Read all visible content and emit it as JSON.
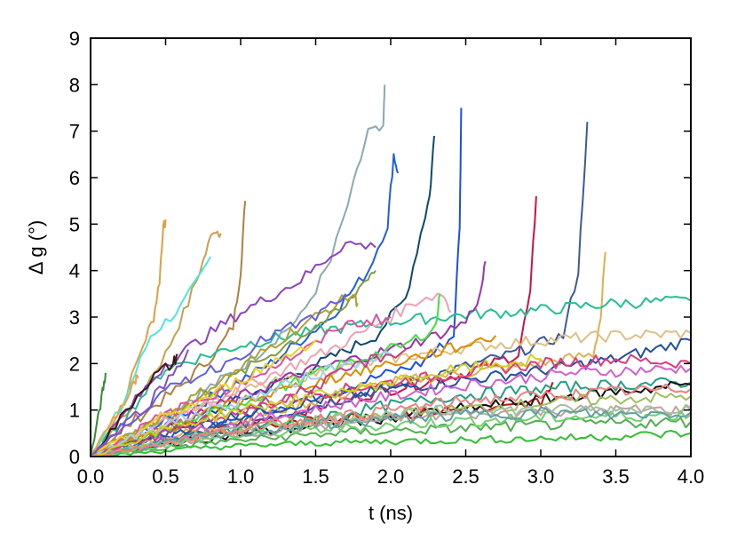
{
  "chart_data": {
    "type": "line",
    "xlabel": "t (ns)",
    "ylabel": "Δ g (°)",
    "xlim": [
      0.0,
      4.0
    ],
    "ylim": [
      0,
      9
    ],
    "xticks": [
      "0.0",
      "0.5",
      "1.0",
      "1.5",
      "2.0",
      "2.5",
      "3.0",
      "3.5",
      "4.0"
    ],
    "yticks": [
      "0",
      "1",
      "2",
      "3",
      "4",
      "5",
      "6",
      "7",
      "8",
      "9"
    ],
    "grid": false,
    "legend": "none",
    "series": [
      {
        "color": "#e0a040",
        "x": [
          0.0,
          0.2,
          0.35,
          0.42,
          0.46,
          0.48,
          0.5
        ],
        "y": [
          0.0,
          1.0,
          2.4,
          3.0,
          3.8,
          4.8,
          5.1
        ]
      },
      {
        "color": "#c8a050",
        "x": [
          0.0,
          0.3,
          0.5,
          0.65,
          0.75,
          0.82,
          0.87
        ],
        "y": [
          0.0,
          1.2,
          2.2,
          3.3,
          4.2,
          4.9,
          4.8
        ]
      },
      {
        "color": "#4fe6e0",
        "x": [
          0.0,
          0.2,
          0.4,
          0.6,
          0.72,
          0.8
        ],
        "y": [
          0.0,
          1.0,
          2.6,
          3.2,
          3.8,
          4.3
        ]
      },
      {
        "color": "#b08040",
        "x": [
          0.0,
          0.3,
          0.6,
          0.85,
          0.95,
          1.0,
          1.03
        ],
        "y": [
          0.0,
          0.8,
          1.5,
          2.3,
          2.8,
          4.0,
          5.5
        ]
      },
      {
        "color": "#88aab0",
        "x": [
          0.0,
          0.5,
          1.0,
          1.4,
          1.6,
          1.75,
          1.85,
          1.95,
          1.96
        ],
        "y": [
          0.0,
          0.9,
          1.9,
          3.0,
          4.2,
          5.8,
          7.0,
          7.0,
          8.0
        ]
      },
      {
        "color": "#1f5fe0",
        "x": [
          0.0,
          0.6,
          1.2,
          1.6,
          1.85,
          1.98,
          2.02,
          2.05
        ],
        "y": [
          0.0,
          0.9,
          2.0,
          3.0,
          4.0,
          5.0,
          6.5,
          6.1
        ]
      },
      {
        "color": "#0a4a70",
        "x": [
          0.0,
          0.7,
          1.4,
          1.9,
          2.1,
          2.2,
          2.26,
          2.29
        ],
        "y": [
          0.0,
          0.8,
          1.8,
          2.6,
          3.4,
          4.8,
          5.6,
          6.9
        ]
      },
      {
        "color": "#1a50e0",
        "x": [
          0.0,
          0.8,
          1.6,
          2.2,
          2.42,
          2.46,
          2.47
        ],
        "y": [
          0.0,
          0.7,
          1.4,
          2.0,
          2.6,
          5.0,
          7.5
        ]
      },
      {
        "color": "#d0104a",
        "x": [
          0.0,
          0.9,
          1.8,
          2.5,
          2.85,
          2.93,
          2.97
        ],
        "y": [
          0.0,
          0.6,
          1.3,
          1.8,
          2.2,
          3.5,
          5.6
        ]
      },
      {
        "color": "#3a5aa0",
        "x": [
          0.0,
          1.0,
          2.0,
          2.8,
          3.15,
          3.25,
          3.31
        ],
        "y": [
          0.0,
          0.7,
          1.5,
          2.2,
          2.6,
          4.0,
          7.2
        ]
      },
      {
        "color": "#e0b050",
        "x": [
          0.0,
          1.0,
          2.0,
          3.0,
          3.35,
          3.4,
          3.43
        ],
        "y": [
          0.0,
          0.8,
          1.6,
          2.0,
          2.2,
          3.0,
          4.4
        ]
      },
      {
        "color": "#20c090",
        "x": [
          0.0,
          0.5,
          1.0,
          1.5,
          2.0,
          2.5,
          3.0,
          3.5,
          4.0
        ],
        "y": [
          0.0,
          1.9,
          2.4,
          2.7,
          2.9,
          3.05,
          3.15,
          3.3,
          3.35
        ]
      },
      {
        "color": "#e0c080",
        "x": [
          0.0,
          0.5,
          1.0,
          1.5,
          2.0,
          2.5,
          3.0,
          3.5,
          4.0
        ],
        "y": [
          0.0,
          0.9,
          1.4,
          1.8,
          2.1,
          2.35,
          2.5,
          2.6,
          2.65
        ]
      },
      {
        "color": "#2050a0",
        "x": [
          0.0,
          0.5,
          1.0,
          1.5,
          2.0,
          2.5,
          3.0,
          3.5,
          4.0
        ],
        "y": [
          0.0,
          0.5,
          0.9,
          1.2,
          1.45,
          1.65,
          1.85,
          2.1,
          2.5
        ]
      },
      {
        "color": "#e03a7a",
        "x": [
          0.0,
          0.5,
          1.0,
          1.5,
          2.0,
          2.5,
          3.0,
          3.5,
          4.0
        ],
        "y": [
          0.0,
          0.6,
          1.0,
          1.35,
          1.6,
          1.8,
          2.0,
          2.1,
          2.0
        ]
      },
      {
        "color": "#9040c0",
        "x": [
          0.0,
          0.5,
          1.0,
          1.4,
          1.7,
          1.9
        ],
        "y": [
          0.0,
          2.0,
          3.1,
          3.8,
          4.6,
          4.5
        ]
      },
      {
        "color": "#80a040",
        "x": [
          0.0,
          0.6,
          1.2,
          1.7,
          1.85,
          1.9
        ],
        "y": [
          0.0,
          1.0,
          2.2,
          3.2,
          3.9,
          4.0
        ]
      },
      {
        "color": "#f0a0b0",
        "x": [
          0.0,
          0.8,
          1.6,
          2.0,
          2.2,
          2.35,
          2.4
        ],
        "y": [
          0.0,
          1.2,
          2.3,
          3.0,
          3.4,
          3.5,
          3.1
        ]
      },
      {
        "color": "#a030b0",
        "x": [
          0.0,
          0.7,
          1.4,
          2.0,
          2.3,
          2.5,
          2.6,
          2.63
        ],
        "y": [
          0.0,
          0.9,
          1.8,
          2.3,
          2.6,
          2.9,
          3.5,
          4.2
        ]
      },
      {
        "color": "#b0a030",
        "x": [
          0.0,
          0.6,
          1.0,
          1.3,
          1.6,
          1.75,
          1.78
        ],
        "y": [
          0.0,
          1.1,
          1.9,
          2.6,
          3.2,
          3.5,
          3.3
        ]
      },
      {
        "color": "#40e040",
        "x": [
          0.0,
          0.8,
          1.6,
          2.1,
          2.3,
          2.33
        ],
        "y": [
          0.0,
          0.9,
          1.9,
          2.4,
          2.8,
          3.5
        ]
      },
      {
        "color": "#3a1a10",
        "x": [
          0.0,
          0.2,
          0.35,
          0.45,
          0.55,
          0.58
        ],
        "y": [
          0.0,
          0.8,
          1.5,
          1.8,
          2.0,
          2.2
        ]
      },
      {
        "color": "#f0a040",
        "x": [
          0.0,
          0.15,
          0.25,
          0.3,
          0.32
        ],
        "y": [
          0.0,
          0.8,
          1.3,
          1.6,
          1.7
        ]
      },
      {
        "color": "#c01010",
        "x": [
          0.0,
          0.8,
          1.6,
          2.4,
          2.7,
          2.9,
          3.0,
          3.08
        ],
        "y": [
          0.0,
          0.5,
          0.8,
          1.0,
          1.0,
          1.1,
          1.2,
          1.6
        ]
      },
      {
        "color": "#d060d0",
        "x": [
          0.0,
          0.8,
          1.6,
          2.4,
          3.2,
          4.0
        ],
        "y": [
          0.0,
          0.6,
          1.1,
          1.5,
          1.8,
          1.9
        ]
      },
      {
        "color": "#20a080",
        "x": [
          0.0,
          0.8,
          1.6,
          2.4,
          3.2,
          4.0
        ],
        "y": [
          0.0,
          0.5,
          0.9,
          1.3,
          1.5,
          1.6
        ]
      },
      {
        "color": "#101010",
        "x": [
          0.0,
          0.8,
          1.6,
          2.4,
          3.2,
          4.0
        ],
        "y": [
          0.0,
          0.4,
          0.7,
          1.0,
          1.3,
          1.55
        ]
      },
      {
        "color": "#a0c060",
        "x": [
          0.0,
          0.8,
          1.6,
          2.4,
          3.2,
          4.0
        ],
        "y": [
          0.0,
          0.5,
          0.8,
          1.0,
          1.2,
          1.3
        ]
      },
      {
        "color": "#c0a0a0",
        "x": [
          0.0,
          0.8,
          1.6,
          2.4,
          3.2,
          4.0
        ],
        "y": [
          0.0,
          0.4,
          0.7,
          0.9,
          1.0,
          1.0
        ]
      },
      {
        "color": "#a0c0a0",
        "x": [
          0.0,
          0.8,
          1.6,
          2.4,
          3.2,
          4.0
        ],
        "y": [
          0.0,
          0.5,
          0.8,
          1.0,
          1.0,
          1.05
        ]
      },
      {
        "color": "#30c030",
        "x": [
          0.0,
          0.8,
          1.6,
          2.4,
          3.2,
          4.0
        ],
        "y": [
          0.0,
          0.2,
          0.3,
          0.35,
          0.4,
          0.5
        ]
      },
      {
        "color": "#50b050",
        "x": [
          0.0,
          0.8,
          1.6,
          2.4,
          3.2,
          4.0
        ],
        "y": [
          0.0,
          0.3,
          0.5,
          0.6,
          0.7,
          0.75
        ]
      },
      {
        "color": "#70d070",
        "x": [
          0.0,
          0.8,
          1.6,
          2.4,
          3.2,
          4.0
        ],
        "y": [
          0.0,
          0.4,
          0.6,
          0.75,
          0.85,
          0.9
        ]
      },
      {
        "color": "#e050a0",
        "x": [
          0.0,
          0.5,
          1.0,
          1.5,
          1.65,
          2.0
        ],
        "y": [
          0.0,
          0.9,
          1.6,
          2.4,
          2.8,
          3.0
        ]
      },
      {
        "color": "#6060e0",
        "x": [
          0.0,
          0.3,
          0.6,
          0.9,
          1.2,
          1.5,
          1.7
        ],
        "y": [
          0.0,
          0.9,
          1.6,
          2.0,
          2.6,
          3.0,
          3.5
        ]
      },
      {
        "color": "#f0d020",
        "x": [
          0.0,
          0.4,
          0.8,
          1.2,
          1.5
        ],
        "y": [
          0.0,
          0.7,
          1.3,
          2.0,
          2.5
        ]
      },
      {
        "color": "#8050c0",
        "x": [
          0.0,
          0.2,
          0.4,
          0.55,
          0.65
        ],
        "y": [
          0.0,
          0.6,
          1.2,
          1.8,
          2.3
        ]
      },
      {
        "color": "#309030",
        "x": [
          0.0,
          0.05,
          0.08,
          0.1
        ],
        "y": [
          0.0,
          0.8,
          1.4,
          1.8
        ]
      },
      {
        "color": "#e08a00",
        "x": [
          0.0,
          0.5,
          1.0,
          1.5,
          2.0,
          2.5,
          2.7
        ],
        "y": [
          0.0,
          0.6,
          1.2,
          1.6,
          2.0,
          2.4,
          2.6
        ]
      },
      {
        "color": "#a0d0f0",
        "x": [
          0.0,
          0.4,
          0.8,
          1.2,
          1.6,
          2.0
        ],
        "y": [
          0.0,
          0.6,
          1.0,
          1.4,
          1.9,
          2.2
        ]
      },
      {
        "color": "#c04080",
        "x": [
          0.0,
          0.5,
          1.0,
          1.5,
          1.8,
          2.1
        ],
        "y": [
          0.0,
          0.5,
          1.0,
          1.5,
          2.0,
          2.3
        ]
      },
      {
        "color": "#60a0a0",
        "x": [
          0.0,
          0.5,
          1.0,
          1.5,
          2.0,
          2.5,
          3.0,
          3.5,
          4.0
        ],
        "y": [
          0.0,
          0.3,
          0.5,
          0.7,
          0.8,
          0.9,
          0.95,
          0.9,
          0.95
        ]
      },
      {
        "color": "#f08080",
        "x": [
          0.0,
          0.5,
          1.0,
          1.5,
          2.0,
          2.5,
          3.0,
          3.5,
          4.0
        ],
        "y": [
          0.0,
          0.3,
          0.6,
          0.8,
          1.0,
          1.2,
          1.3,
          1.4,
          1.45
        ]
      },
      {
        "color": "#d0d020",
        "x": [
          0.0,
          0.5,
          1.0,
          1.5,
          2.0,
          2.5,
          3.0
        ],
        "y": [
          0.0,
          0.6,
          1.0,
          1.3,
          1.6,
          1.9,
          2.1
        ]
      }
    ]
  }
}
